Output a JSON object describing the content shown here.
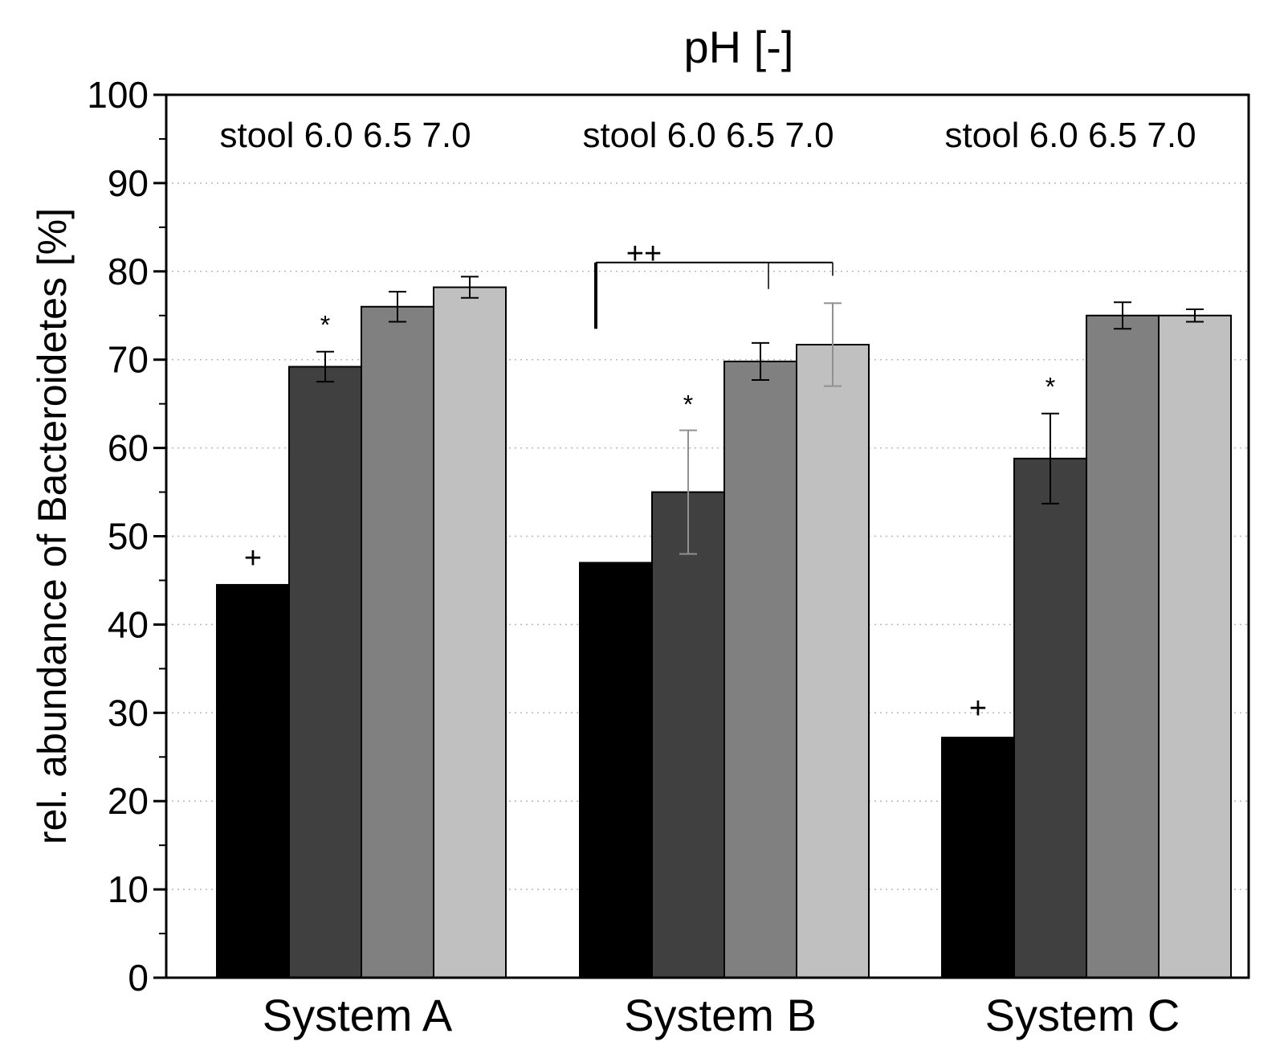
{
  "chart_data": {
    "type": "bar",
    "title": "pH [-]",
    "xlabel": "",
    "ylabel": "rel. abundance of Bacteroidetes [%]",
    "ylim": [
      0,
      100
    ],
    "yticks": [
      0,
      10,
      20,
      30,
      40,
      50,
      60,
      70,
      80,
      90,
      100
    ],
    "grid": true,
    "categories": [
      "System A",
      "System B",
      "System C"
    ],
    "group_header": "stool 6.0 6.5 7.0",
    "series": [
      {
        "name": "stool",
        "color": "#000000",
        "values": [
          44.5,
          47.0,
          27.2
        ],
        "errors": [
          null,
          null,
          null
        ]
      },
      {
        "name": "6.0",
        "color": "#404040",
        "values": [
          69.2,
          55.0,
          58.8
        ],
        "errors": [
          1.7,
          7.0,
          5.1
        ]
      },
      {
        "name": "6.5",
        "color": "#808080",
        "values": [
          76.0,
          69.8,
          75.0
        ],
        "errors": [
          1.7,
          2.1,
          1.5
        ]
      },
      {
        "name": "7.0",
        "color": "#c0c0c0",
        "values": [
          78.2,
          71.7,
          75.0
        ],
        "errors": [
          1.2,
          4.7,
          0.7
        ]
      }
    ],
    "annotations": [
      {
        "text": "+",
        "category": 0,
        "series": 0,
        "y": 47.5
      },
      {
        "text": "*",
        "category": 0,
        "series": 1,
        "y": 74.0
      },
      {
        "text": "*",
        "category": 1,
        "series": 1,
        "y": 65.0
      },
      {
        "text": "+",
        "category": 2,
        "series": 0,
        "y": 30.5
      },
      {
        "text": "*",
        "category": 2,
        "series": 1,
        "y": 67.0
      },
      {
        "text": "++",
        "category": 1,
        "series": 0,
        "y": 82.0
      }
    ],
    "bracket": {
      "category": 1,
      "from_series": 0,
      "to_series": 3,
      "y": 81.0,
      "mid_series": 2,
      "left_drop_to": 73.5,
      "mid_drop_to": 78.0,
      "right_drop_to": 79.5
    }
  }
}
